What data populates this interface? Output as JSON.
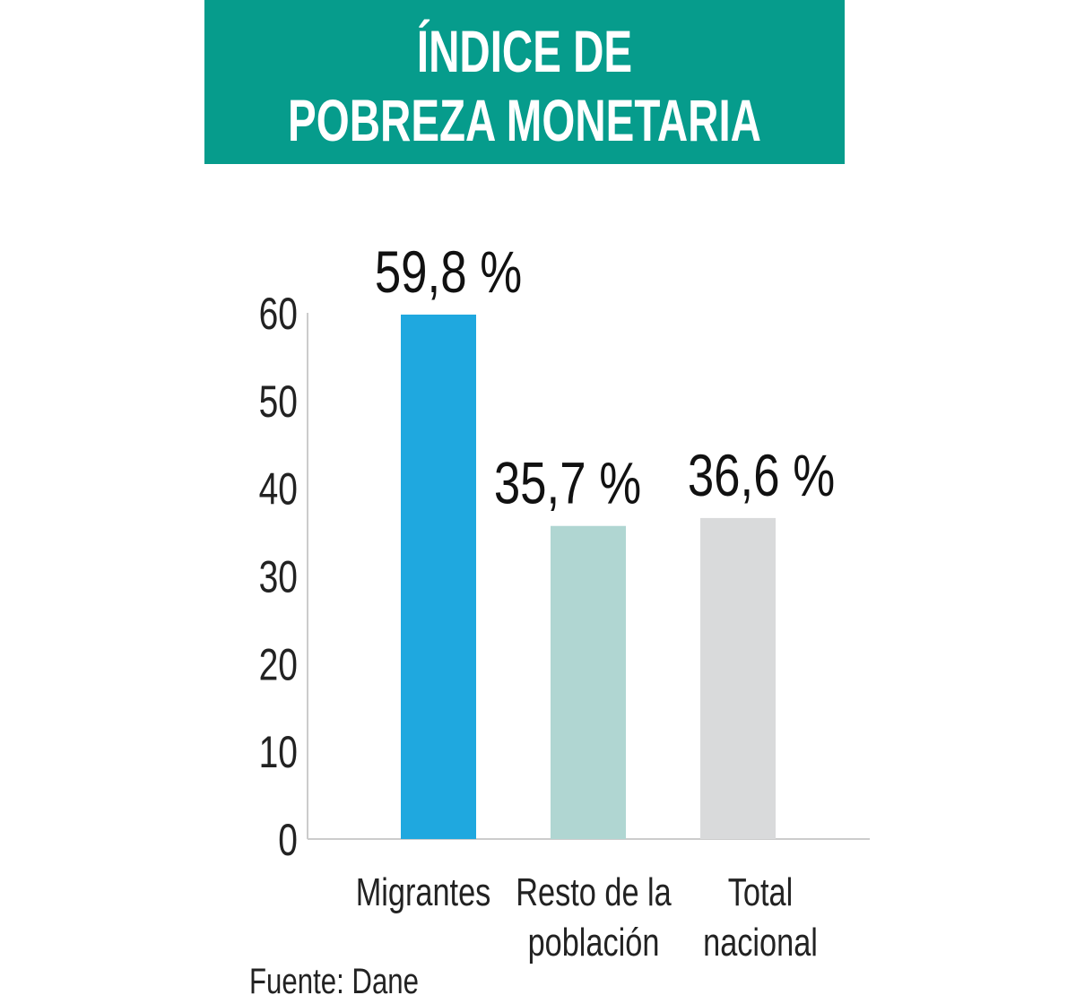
{
  "chart_data": {
    "type": "bar",
    "title_lines": [
      "ÍNDICE DE",
      "POBREZA MONETARIA"
    ],
    "categories": [
      [
        "Migrantes"
      ],
      [
        "Resto de la",
        "población"
      ],
      [
        "Total",
        "nacional"
      ]
    ],
    "values": [
      59.8,
      35.7,
      36.6
    ],
    "data_labels": [
      "59,8 %",
      "35,7 %",
      "36,6 %"
    ],
    "colors": [
      "#1fa8df",
      "#b0d6d2",
      "#d9dadb"
    ],
    "title_bg": "#069c8c",
    "yticks": [
      0,
      10,
      20,
      30,
      40,
      50,
      60
    ],
    "ylim": [
      0,
      60
    ],
    "grid": false,
    "xlabel": "",
    "ylabel": "",
    "source": "Fuente: Dane"
  }
}
